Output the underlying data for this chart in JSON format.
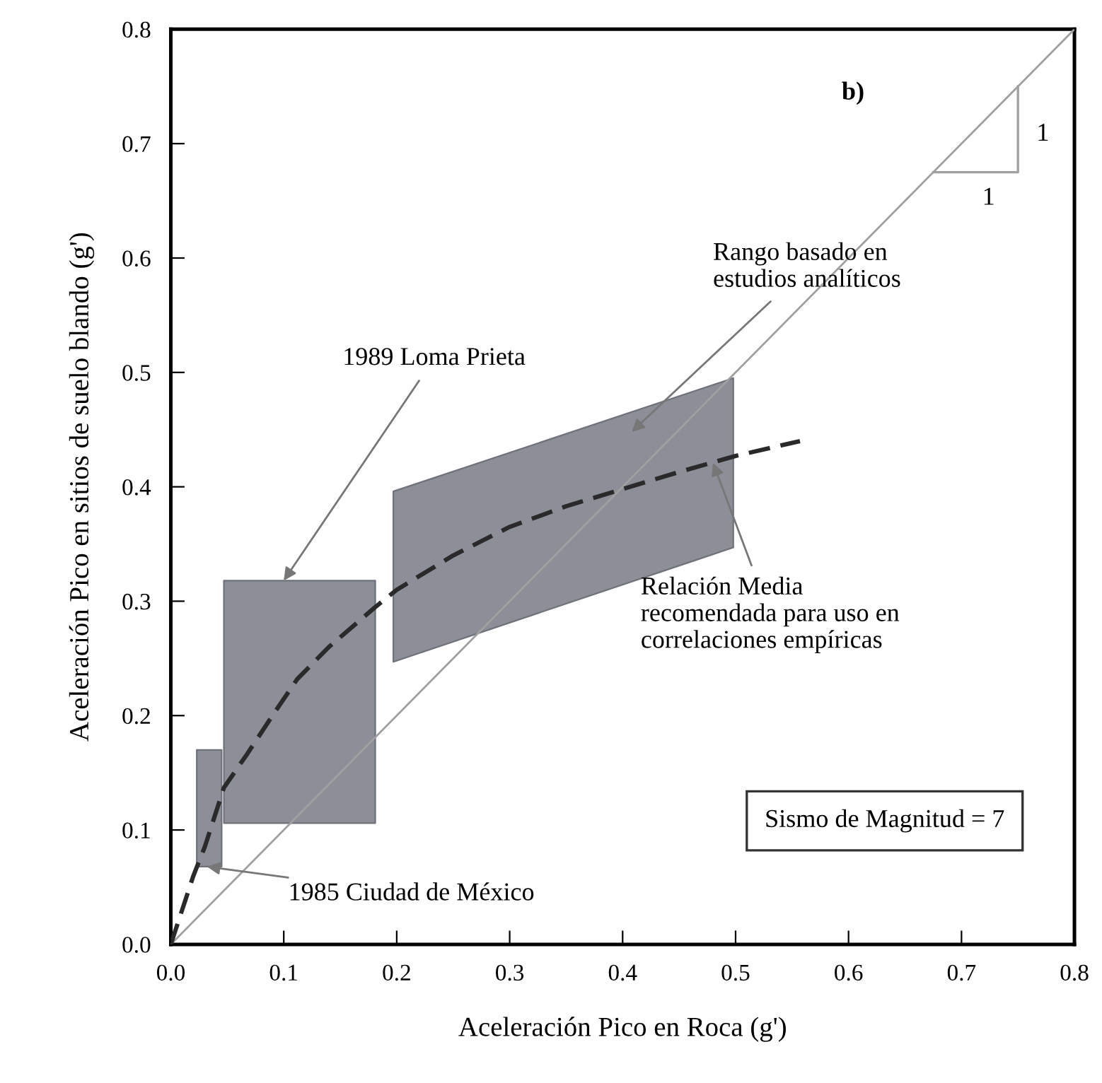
{
  "chart_data": {
    "type": "line",
    "xlabel": "Aceleración Pico en Roca (g')",
    "ylabel": "Aceleración Pico en sitios de suelo blando (g')",
    "xlim": [
      0,
      0.8
    ],
    "ylim": [
      0,
      0.8
    ],
    "xticks": [
      {
        "value": 0,
        "label": "0.0"
      },
      0.1,
      0.2,
      0.3,
      0.4,
      0.5,
      0.6,
      0.7,
      0.8
    ],
    "yticks": [
      {
        "value": 0,
        "label": "0.0"
      },
      0.1,
      0.2,
      0.3,
      0.4,
      0.5,
      0.6,
      0.7,
      0.8
    ],
    "grid": false,
    "series": [
      {
        "color": "#8c8f98",
        "x": [
          0.023,
          0.045
        ],
        "values": [
          null,
          null
        ],
        "lower": [
          0.068,
          0.068
        ],
        "upper": [
          0.17,
          0.17
        ]
      },
      {
        "color": "#8c8f98",
        "x": [
          0.047,
          0.181
        ],
        "values": [
          null,
          null
        ],
        "lower": [
          0.106,
          0.106
        ],
        "upper": [
          0.318,
          0.318
        ]
      },
      {
        "color": "#8c8f98",
        "x": [
          0.197,
          0.498
        ],
        "values": [
          null,
          null
        ],
        "lower": [
          0.247,
          0.347
        ],
        "upper": [
          0.396,
          0.495
        ]
      },
      {
        "color": "#a0a0a0",
        "line_style": "solid",
        "x": [
          0,
          0.8
        ],
        "values": [
          0,
          0.8
        ]
      },
      {
        "color": "#2a2a2a",
        "line_style": "dashed",
        "x": [
          0,
          0.01,
          0.02,
          0.03,
          0.047,
          0.068,
          0.09,
          0.112,
          0.14,
          0.18,
          0.2,
          0.25,
          0.3,
          0.35,
          0.4,
          0.45,
          0.5,
          0.557
        ],
        "values": [
          0,
          0.03,
          0.06,
          0.085,
          0.137,
          0.167,
          0.2,
          0.232,
          0.26,
          0.294,
          0.31,
          0.34,
          0.365,
          0.383,
          0.398,
          0.413,
          0.427,
          0.44
        ]
      }
    ],
    "annotations": [
      {
        "text": "1989 Loma Prieta",
        "x": 0.1,
        "y": 0.318
      },
      "Rango basado en\nestudios analíticos",
      {
        "text": "Relación Media\nrecomendada para uso en\ncorrelaciones empíricas",
        "x": 0.48,
        "y": 0.421
      },
      {
        "text": "1985 Ciudad de México",
        "x": 0.032,
        "y": 0.068
      },
      "b)",
      "1",
      "1",
      "Sismo de Magnitud = 7"
    ]
  }
}
